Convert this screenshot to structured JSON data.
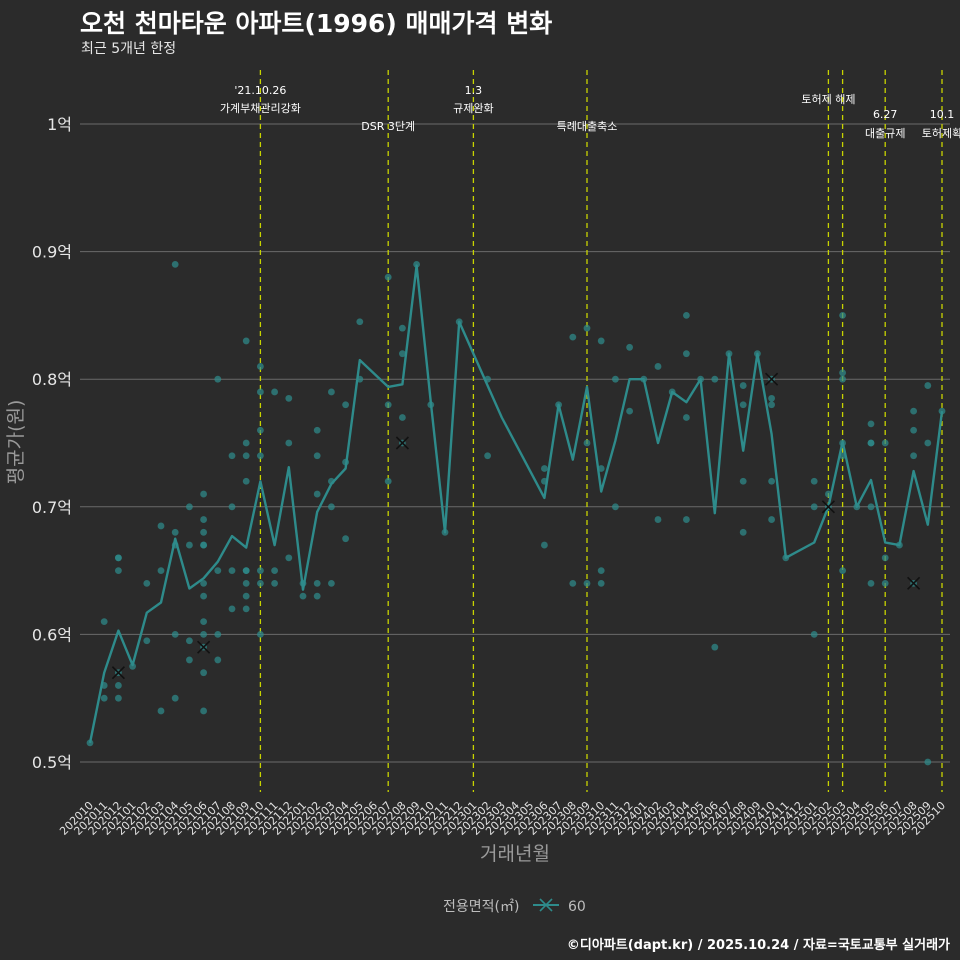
{
  "title": "오천 천마타운 아파트(1996) 매매가격 변화",
  "subtitle": "최근 5개년 한정",
  "caption": "©디아파트(dapt.kr) / 2025.10.24 / 자료=국토교통부 실거래가",
  "colors": {
    "background": "#2b2b2b",
    "series": "#2e8b8b",
    "event_line": "#c8d400",
    "grid": "#6b6b6b",
    "marker": "#111111"
  },
  "chart_data": {
    "type": "line",
    "xlabel": "거래년월",
    "ylabel": "평균가(원)",
    "ylim": [
      0.475,
      1.045
    ],
    "y_unit_suffix": "억",
    "y_ticks": [
      {
        "value": 0.5,
        "label": "0.5억"
      },
      {
        "value": 0.6,
        "label": "0.6억"
      },
      {
        "value": 0.7,
        "label": "0.7억"
      },
      {
        "value": 0.8,
        "label": "0.8억"
      },
      {
        "value": 0.9,
        "label": "0.9억"
      },
      {
        "value": 1.0,
        "label": "1억"
      }
    ],
    "months": [
      "202010",
      "202011",
      "202012",
      "202101",
      "202102",
      "202103",
      "202104",
      "202105",
      "202106",
      "202107",
      "202108",
      "202109",
      "202110",
      "202111",
      "202112",
      "202201",
      "202202",
      "202203",
      "202204",
      "202205",
      "202206",
      "202207",
      "202208",
      "202209",
      "202210",
      "202211",
      "202212",
      "202301",
      "202302",
      "202303",
      "202304",
      "202305",
      "202306",
      "202307",
      "202308",
      "202309",
      "202310",
      "202311",
      "202312",
      "202401",
      "202402",
      "202403",
      "202404",
      "202405",
      "202406",
      "202407",
      "202408",
      "202409",
      "202410",
      "202411",
      "202412",
      "202501",
      "202502",
      "202503",
      "202504",
      "202505",
      "202506",
      "202507",
      "202508",
      "202509",
      "202510"
    ],
    "legend": {
      "title": "전용면적(㎡)",
      "label": "60"
    },
    "series": [
      {
        "name": "60",
        "points": [
          [
            "202010",
            0.515
          ],
          [
            "202011",
            0.57
          ],
          [
            "202012",
            0.603
          ],
          [
            "202101",
            0.576
          ],
          [
            "202102",
            0.617
          ],
          [
            "202103",
            0.625
          ],
          [
            "202104",
            0.675
          ],
          [
            "202105",
            0.636
          ],
          [
            "202106",
            0.644
          ],
          [
            "202107",
            0.657
          ],
          [
            "202108",
            0.677
          ],
          [
            "202109",
            0.668
          ],
          [
            "202110",
            0.72
          ],
          [
            "202111",
            0.67
          ],
          [
            "202112",
            0.731
          ],
          [
            "202201",
            0.635
          ],
          [
            "202202",
            0.696
          ],
          [
            "202203",
            0.718
          ],
          [
            "202204",
            0.73
          ],
          [
            "202205",
            0.815
          ],
          [
            "202207",
            0.794
          ],
          [
            "202208",
            0.796
          ],
          [
            "202209",
            0.889
          ],
          [
            "202210",
            0.782
          ],
          [
            "202211",
            0.68
          ],
          [
            "202212",
            0.845
          ],
          [
            "202303",
            0.77
          ],
          [
            "202306",
            0.707
          ],
          [
            "202307",
            0.78
          ],
          [
            "202308",
            0.737
          ],
          [
            "202309",
            0.794
          ],
          [
            "202310",
            0.712
          ],
          [
            "202311",
            0.752
          ],
          [
            "202312",
            0.8
          ],
          [
            "202401",
            0.8
          ],
          [
            "202402",
            0.75
          ],
          [
            "202403",
            0.79
          ],
          [
            "202404",
            0.782
          ],
          [
            "202405",
            0.8
          ],
          [
            "202406",
            0.695
          ],
          [
            "202407",
            0.82
          ],
          [
            "202408",
            0.744
          ],
          [
            "202409",
            0.82
          ],
          [
            "202410",
            0.757
          ],
          [
            "202411",
            0.66
          ],
          [
            "202501",
            0.672
          ],
          [
            "202502",
            0.7
          ],
          [
            "202503",
            0.751
          ],
          [
            "202504",
            0.7
          ],
          [
            "202505",
            0.721
          ],
          [
            "202506",
            0.672
          ],
          [
            "202507",
            0.67
          ],
          [
            "202508",
            0.728
          ],
          [
            "202509",
            0.686
          ],
          [
            "202510",
            0.775
          ]
        ]
      }
    ],
    "transactions": [
      [
        "202010",
        0.515
      ],
      [
        "202011",
        0.61
      ],
      [
        "202011",
        0.56
      ],
      [
        "202011",
        0.55
      ],
      [
        "202012",
        0.66
      ],
      [
        "202012",
        0.66
      ],
      [
        "202012",
        0.65
      ],
      [
        "202012",
        0.57
      ],
      [
        "202012",
        0.56
      ],
      [
        "202012",
        0.55
      ],
      [
        "202101",
        0.575
      ],
      [
        "202102",
        0.64
      ],
      [
        "202102",
        0.595
      ],
      [
        "202103",
        0.685
      ],
      [
        "202103",
        0.65
      ],
      [
        "202103",
        0.54
      ],
      [
        "202104",
        0.89
      ],
      [
        "202104",
        0.68
      ],
      [
        "202104",
        0.67
      ],
      [
        "202104",
        0.6
      ],
      [
        "202104",
        0.55
      ],
      [
        "202105",
        0.7
      ],
      [
        "202105",
        0.67
      ],
      [
        "202105",
        0.595
      ],
      [
        "202105",
        0.58
      ],
      [
        "202106",
        0.71
      ],
      [
        "202106",
        0.69
      ],
      [
        "202106",
        0.68
      ],
      [
        "202106",
        0.67
      ],
      [
        "202106",
        0.67
      ],
      [
        "202106",
        0.64
      ],
      [
        "202106",
        0.63
      ],
      [
        "202106",
        0.61
      ],
      [
        "202106",
        0.6
      ],
      [
        "202106",
        0.59
      ],
      [
        "202106",
        0.57
      ],
      [
        "202106",
        0.54
      ],
      [
        "202107",
        0.8
      ],
      [
        "202107",
        0.65
      ],
      [
        "202107",
        0.6
      ],
      [
        "202107",
        0.58
      ],
      [
        "202108",
        0.74
      ],
      [
        "202108",
        0.7
      ],
      [
        "202108",
        0.65
      ],
      [
        "202108",
        0.62
      ],
      [
        "202109",
        0.83
      ],
      [
        "202109",
        0.75
      ],
      [
        "202109",
        0.74
      ],
      [
        "202109",
        0.72
      ],
      [
        "202109",
        0.65
      ],
      [
        "202109",
        0.65
      ],
      [
        "202109",
        0.64
      ],
      [
        "202109",
        0.63
      ],
      [
        "202109",
        0.62
      ],
      [
        "202110",
        0.81
      ],
      [
        "202110",
        0.79
      ],
      [
        "202110",
        0.76
      ],
      [
        "202110",
        0.74
      ],
      [
        "202110",
        0.65
      ],
      [
        "202110",
        0.64
      ],
      [
        "202110",
        0.6
      ],
      [
        "202111",
        0.79
      ],
      [
        "202111",
        0.65
      ],
      [
        "202111",
        0.64
      ],
      [
        "202112",
        0.785
      ],
      [
        "202112",
        0.75
      ],
      [
        "202112",
        0.66
      ],
      [
        "202201",
        0.63
      ],
      [
        "202201",
        0.64
      ],
      [
        "202202",
        0.76
      ],
      [
        "202202",
        0.74
      ],
      [
        "202202",
        0.71
      ],
      [
        "202202",
        0.64
      ],
      [
        "202202",
        0.63
      ],
      [
        "202203",
        0.79
      ],
      [
        "202203",
        0.72
      ],
      [
        "202203",
        0.7
      ],
      [
        "202203",
        0.64
      ],
      [
        "202204",
        0.78
      ],
      [
        "202204",
        0.735
      ],
      [
        "202204",
        0.675
      ],
      [
        "202205",
        0.845
      ],
      [
        "202205",
        0.8
      ],
      [
        "202207",
        0.88
      ],
      [
        "202207",
        0.78
      ],
      [
        "202207",
        0.72
      ],
      [
        "202208",
        0.84
      ],
      [
        "202208",
        0.82
      ],
      [
        "202208",
        0.77
      ],
      [
        "202208",
        0.75
      ],
      [
        "202209",
        0.89
      ],
      [
        "202210",
        0.78
      ],
      [
        "202211",
        0.68
      ],
      [
        "202212",
        0.845
      ],
      [
        "202302",
        0.8
      ],
      [
        "202302",
        0.74
      ],
      [
        "202306",
        0.73
      ],
      [
        "202306",
        0.72
      ],
      [
        "202306",
        0.67
      ],
      [
        "202307",
        0.78
      ],
      [
        "202308",
        0.833
      ],
      [
        "202308",
        0.64
      ],
      [
        "202309",
        0.84
      ],
      [
        "202309",
        0.75
      ],
      [
        "202309",
        0.64
      ],
      [
        "202310",
        0.83
      ],
      [
        "202310",
        0.73
      ],
      [
        "202310",
        0.65
      ],
      [
        "202310",
        0.64
      ],
      [
        "202311",
        0.8
      ],
      [
        "202311",
        0.7
      ],
      [
        "202312",
        0.825
      ],
      [
        "202312",
        0.775
      ],
      [
        "202401",
        0.8
      ],
      [
        "202402",
        0.81
      ],
      [
        "202402",
        0.69
      ],
      [
        "202403",
        0.79
      ],
      [
        "202404",
        0.85
      ],
      [
        "202404",
        0.82
      ],
      [
        "202404",
        0.77
      ],
      [
        "202404",
        0.69
      ],
      [
        "202405",
        0.8
      ],
      [
        "202406",
        0.8
      ],
      [
        "202406",
        0.59
      ],
      [
        "202407",
        0.82
      ],
      [
        "202408",
        0.795
      ],
      [
        "202408",
        0.78
      ],
      [
        "202408",
        0.72
      ],
      [
        "202408",
        0.68
      ],
      [
        "202409",
        0.82
      ],
      [
        "202410",
        0.8
      ],
      [
        "202410",
        0.785
      ],
      [
        "202410",
        0.78
      ],
      [
        "202410",
        0.72
      ],
      [
        "202410",
        0.69
      ],
      [
        "202411",
        0.66
      ],
      [
        "202501",
        0.72
      ],
      [
        "202501",
        0.7
      ],
      [
        "202501",
        0.6
      ],
      [
        "202502",
        0.71
      ],
      [
        "202502",
        0.7
      ],
      [
        "202503",
        0.85
      ],
      [
        "202503",
        0.805
      ],
      [
        "202503",
        0.8
      ],
      [
        "202503",
        0.75
      ],
      [
        "202503",
        0.74
      ],
      [
        "202503",
        0.65
      ],
      [
        "202504",
        0.7
      ],
      [
        "202505",
        0.765
      ],
      [
        "202505",
        0.75
      ],
      [
        "202505",
        0.75
      ],
      [
        "202505",
        0.7
      ],
      [
        "202505",
        0.64
      ],
      [
        "202506",
        0.75
      ],
      [
        "202506",
        0.66
      ],
      [
        "202506",
        0.64
      ],
      [
        "202507",
        0.67
      ],
      [
        "202508",
        0.775
      ],
      [
        "202508",
        0.76
      ],
      [
        "202508",
        0.74
      ],
      [
        "202508",
        0.64
      ],
      [
        "202509",
        0.795
      ],
      [
        "202509",
        0.75
      ],
      [
        "202509",
        0.5
      ],
      [
        "202510",
        0.775
      ]
    ],
    "x_markers": [
      [
        "202012",
        0.57
      ],
      [
        "202106",
        0.59
      ],
      [
        "202208",
        0.75
      ],
      [
        "202410",
        0.8
      ],
      [
        "202502",
        0.7
      ],
      [
        "202508",
        0.64
      ]
    ],
    "events": [
      {
        "month": "202110",
        "date": "'21.10.26",
        "label": "가계부채관리강화"
      },
      {
        "month": "202207",
        "date": "",
        "label": "DSR 3단계"
      },
      {
        "month": "202301",
        "date": "1.3",
        "label": "규제완화"
      },
      {
        "month": "202309",
        "date": "",
        "label": "특례대출축소"
      },
      {
        "month": "202502",
        "date": "",
        "label": "토허제 해제"
      },
      {
        "month": "202503",
        "date": "",
        "label": ""
      },
      {
        "month": "202506",
        "date": "6.27",
        "label": "대출규제"
      },
      {
        "month": "202510",
        "date": "10.1",
        "label": "토허제확"
      }
    ]
  }
}
